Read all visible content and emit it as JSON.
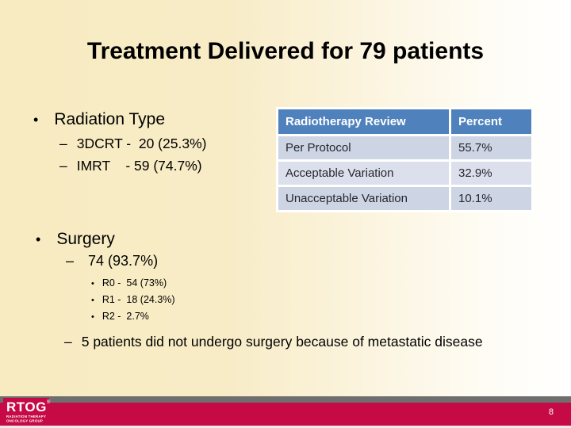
{
  "slide": {
    "title": "Treatment Delivered for 79 patients",
    "page_number": "8"
  },
  "radiation": {
    "bullet_glyph": "•",
    "heading": "Radiation Type",
    "items": [
      {
        "dash": "–",
        "text": "3DCRT -  20 (25.3%)"
      },
      {
        "dash": "–",
        "text": "IMRT    - 59 (74.7%)"
      }
    ]
  },
  "table": {
    "header": {
      "col1": "Radiotherapy Review",
      "col2": "Percent"
    },
    "rows": [
      {
        "label": "Per Protocol",
        "value": "55.7%"
      },
      {
        "label": "Acceptable Variation",
        "value": "32.9%"
      },
      {
        "label": "Unacceptable Variation",
        "value": "10.1%"
      }
    ],
    "colors": {
      "header_bg": "#4F81BD",
      "header_text": "#FFFFFF",
      "row_bg": "#CDD4E3",
      "row_alt_bg": "#DCE0EC"
    }
  },
  "surgery": {
    "bullet_glyph": "•",
    "heading": "Surgery",
    "summary": {
      "dash": "–",
      "text": "74 (93.7%)"
    },
    "sub_items": [
      {
        "bullet": "•",
        "text": "R0 -  54 (73%)"
      },
      {
        "bullet": "•",
        "text": "R1 -  18 (24.3%)"
      },
      {
        "bullet": "•",
        "text": "R2 -  2.7%"
      }
    ],
    "note": {
      "dash": "–",
      "text": "5 patients did not undergo surgery because of metastatic disease"
    }
  },
  "footer": {
    "logo": {
      "name": "RTOG",
      "registered_mark": "®",
      "subtitle_line1": "RADIATION THERAPY",
      "subtitle_line2": "ONCOLOGY GROUP"
    },
    "colors": {
      "gray_bar": "#6E6E6E",
      "crimson_bar": "#C60A46",
      "slide_bg_left": "#F8EBC1",
      "slide_bg_right": "#FFFFFF"
    }
  }
}
